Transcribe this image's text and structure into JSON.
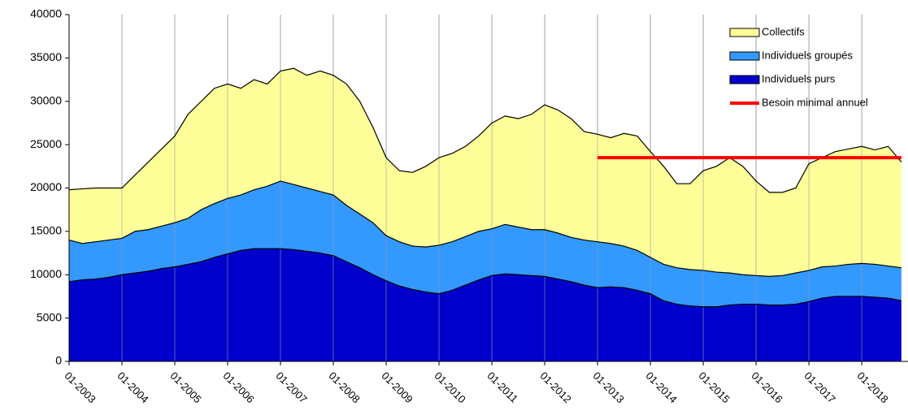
{
  "chart_data": {
    "type": "stacked_area",
    "categories": [
      "01-2003",
      null,
      null,
      null,
      "01-2004",
      null,
      null,
      null,
      "01-2005",
      null,
      null,
      null,
      "01-2006",
      null,
      null,
      null,
      "01-2007",
      null,
      null,
      null,
      "01-2008",
      null,
      null,
      null,
      "01-2009",
      null,
      null,
      null,
      "01-2010",
      null,
      null,
      null,
      "01-2011",
      null,
      null,
      null,
      "01-2012",
      null,
      null,
      null,
      "01-2013",
      null,
      null,
      null,
      "01-2014",
      null,
      null,
      null,
      "01-2015",
      null,
      null,
      null,
      "01-2016",
      null,
      null,
      null,
      "01-2017",
      null,
      null,
      null,
      "01-2018",
      null,
      null,
      null
    ],
    "series": [
      {
        "name": "Collectifs",
        "color": "#ffff99",
        "values": [
          5800,
          6300,
          6200,
          6000,
          5800,
          6500,
          7800,
          8900,
          10000,
          12000,
          12500,
          13300,
          13200,
          12300,
          12700,
          11800,
          12700,
          13400,
          13000,
          13900,
          13800,
          14000,
          13000,
          11000,
          9000,
          8200,
          8500,
          9300,
          10100,
          10200,
          10400,
          11000,
          12200,
          12500,
          12500,
          13300,
          14400,
          14200,
          13700,
          12500,
          12400,
          12200,
          13000,
          13200,
          12200,
          11300,
          9700,
          9900,
          11500,
          12200,
          13300,
          12500,
          10900,
          9700,
          9600,
          9800,
          12300,
          12600,
          13200,
          13300,
          13500,
          13200,
          13800,
          12200
        ]
      },
      {
        "name": "Individuels groupés",
        "color": "#3399ff",
        "values": [
          4800,
          4200,
          4300,
          4300,
          4200,
          4800,
          4800,
          4900,
          5100,
          5300,
          6000,
          6200,
          6400,
          6400,
          6800,
          7200,
          7800,
          7500,
          7300,
          7100,
          7000,
          6500,
          6200,
          6000,
          5200,
          5100,
          5000,
          5200,
          5600,
          5600,
          5600,
          5600,
          5400,
          5700,
          5500,
          5300,
          5400,
          5300,
          5100,
          5200,
          5300,
          5000,
          4800,
          4600,
          4200,
          4200,
          4200,
          4200,
          4200,
          4000,
          3700,
          3400,
          3300,
          3300,
          3400,
          3600,
          3600,
          3600,
          3500,
          3700,
          3800,
          3800,
          3700,
          3800
        ]
      },
      {
        "name": "Individuels purs",
        "color": "#0000cc",
        "values": [
          9200,
          9400,
          9500,
          9700,
          10000,
          10200,
          10400,
          10700,
          10900,
          11200,
          11500,
          12000,
          12400,
          12800,
          13000,
          13000,
          13000,
          12900,
          12700,
          12500,
          12200,
          11500,
          10800,
          10000,
          9300,
          8700,
          8300,
          8000,
          7800,
          8200,
          8800,
          9400,
          9900,
          10100,
          10000,
          9900,
          9800,
          9500,
          9200,
          8800,
          8500,
          8600,
          8500,
          8200,
          7800,
          7000,
          6600,
          6400,
          6300,
          6300,
          6500,
          6600,
          6600,
          6500,
          6500,
          6600,
          6900,
          7300,
          7500,
          7500,
          7500,
          7400,
          7300,
          7000
        ]
      },
      {
        "name": "Besoin minimal annuel",
        "color": "#ff0000",
        "type": "line",
        "values": [
          null,
          null,
          null,
          null,
          null,
          null,
          null,
          null,
          null,
          null,
          null,
          null,
          null,
          null,
          null,
          null,
          null,
          null,
          null,
          null,
          null,
          null,
          null,
          null,
          null,
          null,
          null,
          null,
          null,
          null,
          null,
          null,
          null,
          null,
          null,
          null,
          null,
          null,
          null,
          null,
          23500,
          23500,
          23500,
          23500,
          23500,
          23500,
          23500,
          23500,
          23500,
          23500,
          23500,
          23500,
          23500,
          23500,
          23500,
          23500,
          23500,
          23500,
          23500,
          23500,
          23500,
          23500,
          23500,
          23500
        ]
      }
    ],
    "ylim": [
      0,
      40000
    ],
    "yticks": [
      0,
      5000,
      10000,
      15000,
      20000,
      25000,
      30000,
      35000,
      40000
    ],
    "grid": "x",
    "legend": "upper right"
  }
}
